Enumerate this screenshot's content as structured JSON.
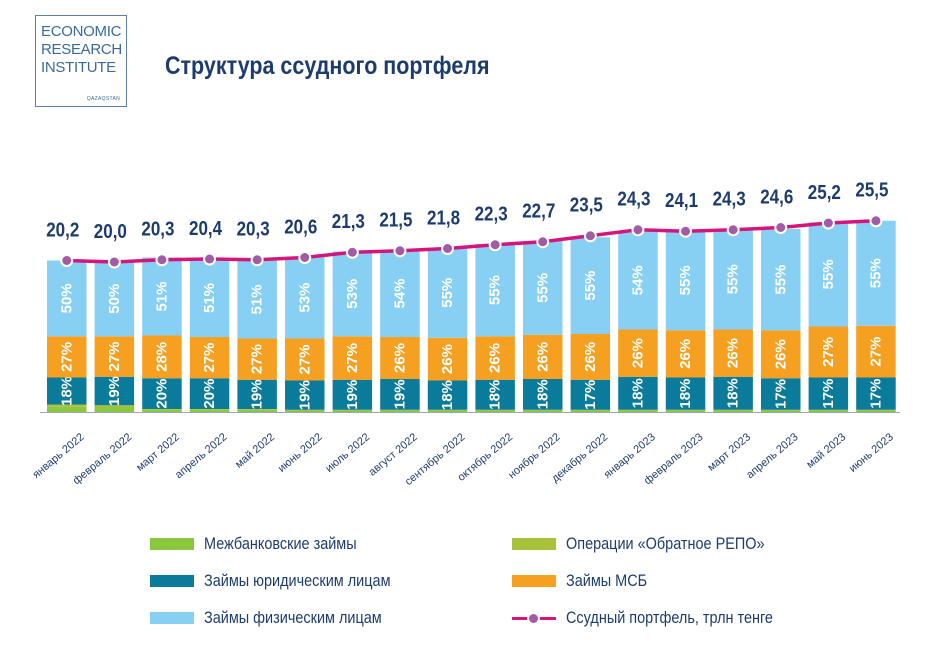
{
  "logo": {
    "line1": "ECONOMIC",
    "line2": "RESEARCH",
    "line3": "INSTITUTE",
    "sub": "QAZAQSTAN"
  },
  "title": "Структура ссудного портфеля",
  "colors": {
    "interbank": "#8dc63f",
    "repo": "#a7c23a",
    "legal": "#0b7b9c",
    "sme": "#f5a020",
    "individuals": "#87d0f4",
    "portfolio_line": "#d6157c",
    "portfolio_marker": "#a35ba6"
  },
  "chart_data": {
    "type": "bar",
    "stacked": true,
    "title": "Структура ссудного портфеля",
    "categories": [
      "январь 2022",
      "февраль 2022",
      "март 2022",
      "апрель 2022",
      "май 2022",
      "июнь 2022",
      "июль 2022",
      "август 2022",
      "сентябрь 2022",
      "октябрь 2022",
      "ноябрь 2022",
      "декабрь 2022",
      "январь 2023",
      "февраль 2023",
      "март 2023",
      "апрель 2023",
      "май 2023",
      "июнь 2023"
    ],
    "series": [
      {
        "name": "Межбанковские займы",
        "values": [
          0.7,
          0.6,
          0.3,
          0.3,
          0.3,
          0.2,
          0.2,
          0.2,
          0.2,
          0.2,
          0.2,
          0.2,
          0.2,
          0.2,
          0.2,
          0.2,
          0.2,
          0.2
        ]
      },
      {
        "name": "Операции «Обратное РЕПО»",
        "values": [
          0.3,
          0.3,
          0.1,
          0.1,
          0.1,
          0.1,
          0.1,
          0.1,
          0.1,
          0.1,
          0.1,
          0.1,
          0.1,
          0.1,
          0.1,
          0.1,
          0.1,
          0.1
        ]
      },
      {
        "name": "Займы юридическим лицам",
        "values": [
          3.6,
          3.8,
          4.1,
          4.1,
          3.9,
          3.9,
          4.0,
          4.1,
          3.9,
          4.0,
          4.1,
          4.0,
          4.4,
          4.3,
          4.4,
          4.2,
          4.3,
          4.3
        ],
        "labels": [
          "18%",
          "19%",
          "20%",
          "20%",
          "19%",
          "19%",
          "19%",
          "19%",
          "18%",
          "18%",
          "18%",
          "17%",
          "18%",
          "18%",
          "18%",
          "17%",
          "17%",
          "17%"
        ]
      },
      {
        "name": "Займы МСБ",
        "values": [
          5.5,
          5.4,
          5.7,
          5.5,
          5.5,
          5.6,
          5.8,
          5.6,
          5.7,
          5.8,
          5.9,
          6.1,
          6.3,
          6.3,
          6.3,
          6.4,
          6.8,
          6.9
        ],
        "labels": [
          "27%",
          "27%",
          "28%",
          "27%",
          "27%",
          "27%",
          "27%",
          "26%",
          "26%",
          "26%",
          "26%",
          "26%",
          "26%",
          "26%",
          "26%",
          "26%",
          "27%",
          "27%"
        ]
      },
      {
        "name": "Займы физическим лицам",
        "values": [
          10.1,
          10.0,
          10.4,
          10.4,
          10.4,
          10.9,
          11.3,
          11.6,
          12.0,
          12.3,
          12.5,
          12.9,
          13.1,
          13.3,
          13.4,
          13.5,
          13.9,
          14.0
        ],
        "labels": [
          "50%",
          "50%",
          "51%",
          "51%",
          "51%",
          "53%",
          "53%",
          "54%",
          "55%",
          "55%",
          "55%",
          "55%",
          "54%",
          "55%",
          "55%",
          "55%",
          "55%",
          "55%"
        ]
      }
    ],
    "line": {
      "name": "Ссудный портфель, трлн тенге",
      "values": [
        20.2,
        20.0,
        20.3,
        20.4,
        20.3,
        20.6,
        21.3,
        21.5,
        21.8,
        22.3,
        22.7,
        23.5,
        24.3,
        24.1,
        24.3,
        24.6,
        25.2,
        25.5
      ],
      "labels": [
        "20,2",
        "20,0",
        "20,3",
        "20,4",
        "20,3",
        "20,6",
        "21,3",
        "21,5",
        "21,8",
        "22,3",
        "22,7",
        "23,5",
        "24,3",
        "24,1",
        "24,3",
        "24,6",
        "25,2",
        "25,5"
      ]
    },
    "legend_position": "bottom",
    "grid": false
  },
  "legend": [
    {
      "name": "Межбанковские займы",
      "color": "#8dc63f",
      "kind": "box"
    },
    {
      "name": "Операции «Обратное РЕПО»",
      "color": "#a7c23a",
      "kind": "box"
    },
    {
      "name": "Займы юридическим лицам",
      "color": "#0b7b9c",
      "kind": "box"
    },
    {
      "name": "Займы МСБ",
      "color": "#f5a020",
      "kind": "box"
    },
    {
      "name": "Займы физическим лицам",
      "color": "#87d0f4",
      "kind": "box"
    },
    {
      "name": "Ссудный портфель, трлн тенге",
      "color": "#d6157c",
      "kind": "line"
    }
  ]
}
